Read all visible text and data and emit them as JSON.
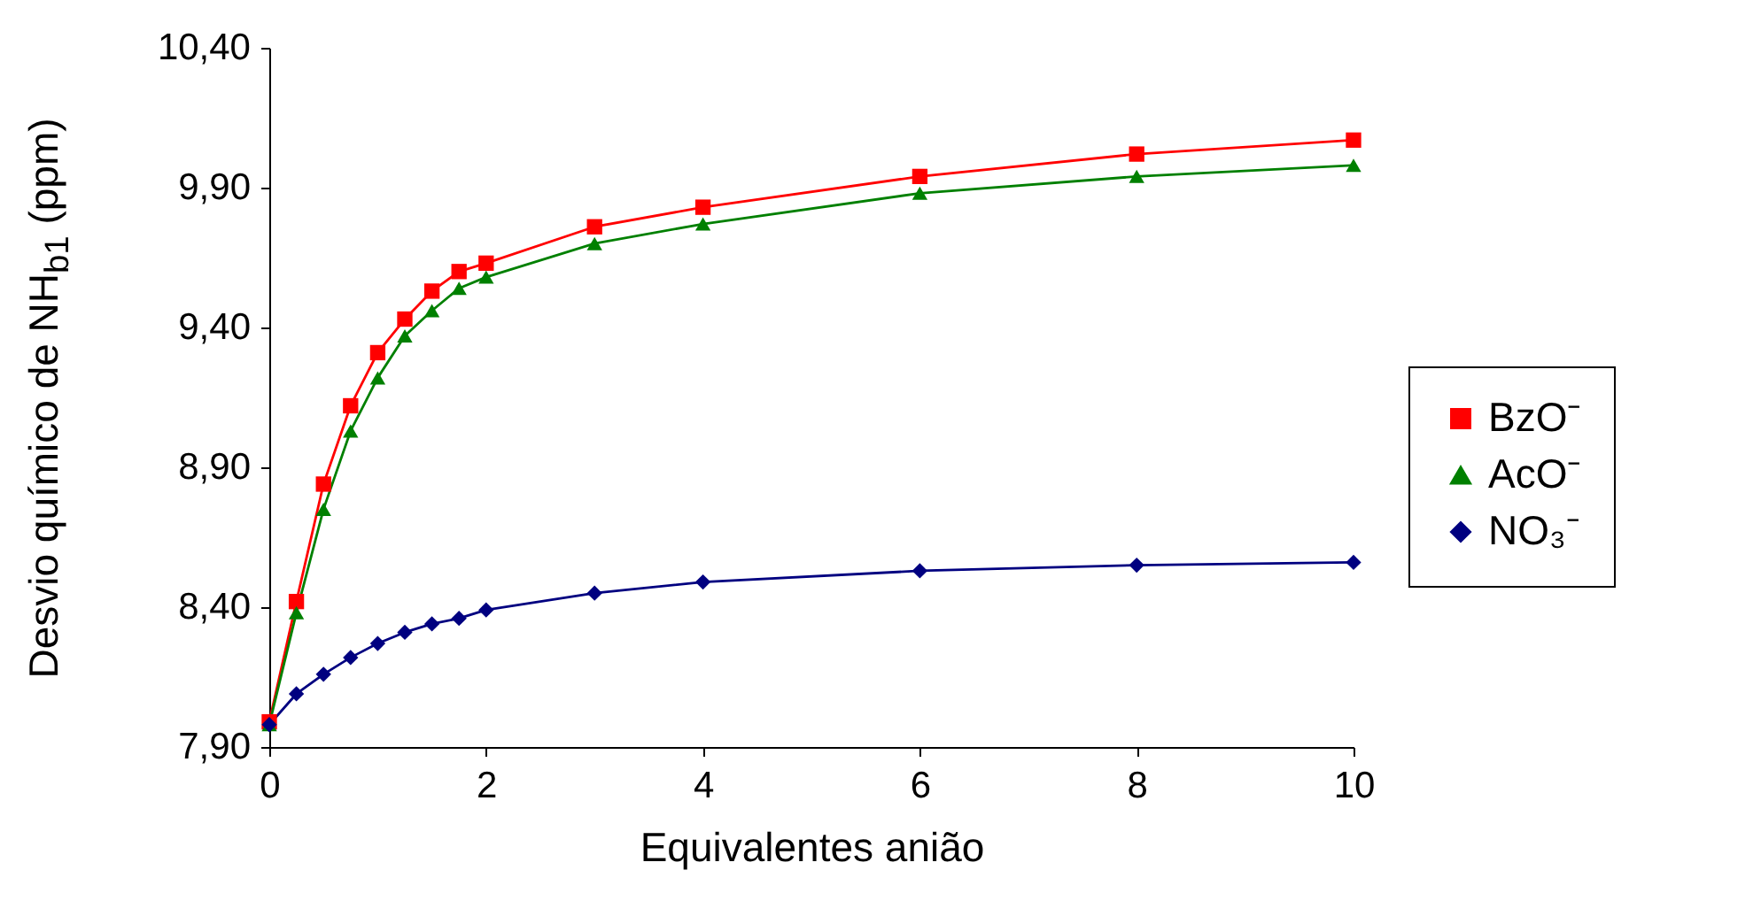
{
  "chart_data": {
    "type": "line",
    "xlabel": "Equivalentes anião",
    "ylabel": "Desvio químico de NH$_{b1}$  (ppm)",
    "xlim": [
      0,
      10
    ],
    "xticks": [
      0,
      2,
      4,
      6,
      8,
      10
    ],
    "ylim": [
      7.9,
      10.4
    ],
    "yticks": [
      {
        "value": 7.9,
        "label": "7,90"
      },
      {
        "value": 8.4,
        "label": "8,40"
      },
      {
        "value": 8.9,
        "label": "8,90"
      },
      {
        "value": 9.4,
        "label": "9,40"
      },
      {
        "value": 9.9,
        "label": "9,90"
      },
      {
        "value": 10.4,
        "label": "10,40"
      }
    ],
    "grid": false,
    "legend": "right",
    "x": [
      0,
      0.25,
      0.5,
      0.75,
      1,
      1.25,
      1.5,
      1.75,
      2,
      3,
      4,
      6,
      8,
      10
    ],
    "series": [
      {
        "name": "BzO⁻",
        "color": "#ff0000",
        "marker": "square",
        "values": [
          7.99,
          8.42,
          8.84,
          9.12,
          9.31,
          9.43,
          9.53,
          9.6,
          9.63,
          9.76,
          9.83,
          9.94,
          10.02,
          10.07
        ]
      },
      {
        "name": "AcO⁻",
        "color": "#008000",
        "marker": "triangle",
        "values": [
          7.98,
          8.38,
          8.75,
          9.03,
          9.22,
          9.37,
          9.46,
          9.54,
          9.58,
          9.7,
          9.77,
          9.88,
          9.94,
          9.98
        ]
      },
      {
        "name": "NO₃⁻",
        "color": "#000080",
        "marker": "diamond",
        "values": [
          7.98,
          8.09,
          8.16,
          8.22,
          8.27,
          8.31,
          8.34,
          8.36,
          8.39,
          8.45,
          8.49,
          8.53,
          8.55,
          8.56
        ]
      }
    ]
  }
}
